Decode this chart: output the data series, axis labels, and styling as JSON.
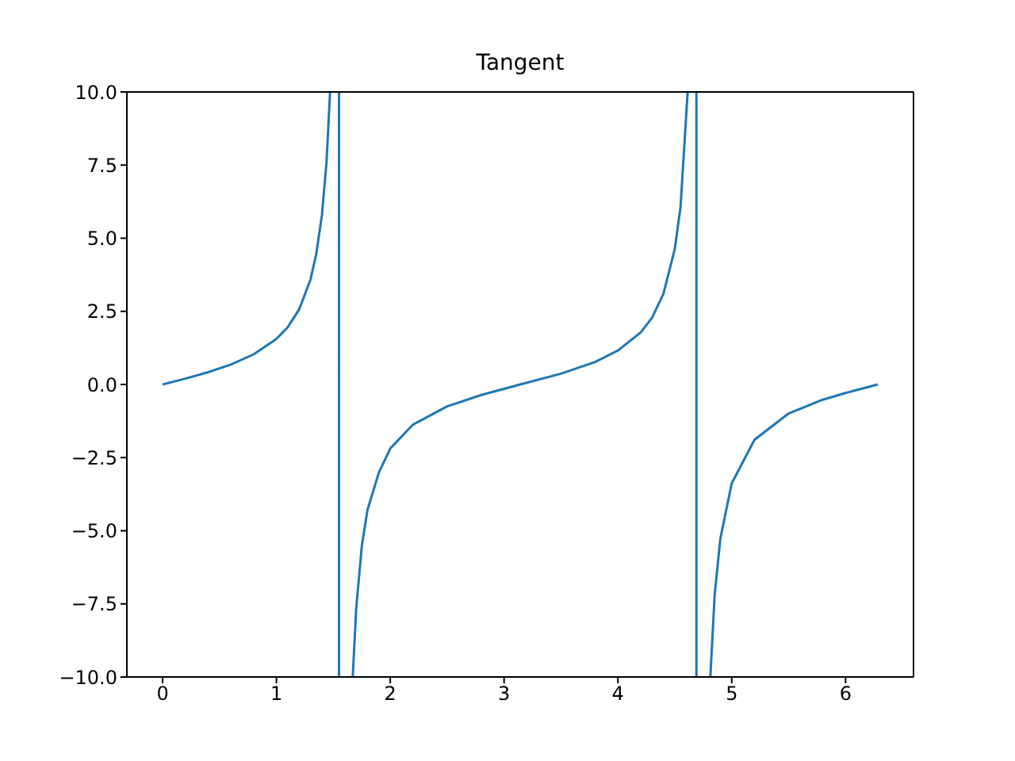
{
  "chart_data": {
    "type": "line",
    "title": "Tangent",
    "x": [
      0,
      0.2,
      0.4,
      0.6,
      0.8,
      1.0,
      1.1,
      1.2,
      1.3,
      1.35,
      1.4,
      1.44,
      1.4711,
      1.51,
      1.55,
      1.55,
      1.6,
      1.6705,
      1.7,
      1.75,
      1.8,
      1.9,
      2.0,
      2.2,
      2.5,
      2.8,
      3.1416,
      3.5,
      3.8,
      4.0,
      4.2,
      4.3,
      4.4,
      4.5,
      4.55,
      4.6127,
      4.65,
      4.69,
      4.69,
      4.75,
      4.8121,
      4.85,
      4.9,
      5.0,
      5.2,
      5.5,
      5.8,
      6.0,
      6.2832
    ],
    "series": [
      {
        "color": "#1f77b4",
        "values": [
          0,
          0.2,
          0.42,
          0.68,
          1.03,
          1.56,
          1.96,
          2.57,
          3.6,
          4.46,
          5.8,
          7.6,
          10,
          null,
          10,
          -10,
          null,
          -10,
          -7.7,
          -5.52,
          -4.29,
          -3.01,
          -2.19,
          -1.37,
          -0.75,
          -0.36,
          0,
          0.37,
          0.77,
          1.16,
          1.78,
          2.28,
          3.1,
          4.64,
          6.05,
          10,
          null,
          10,
          -10,
          null,
          -10,
          -7.2,
          -5.27,
          -3.38,
          -1.89,
          -0.99,
          -0.52,
          -0.29,
          0
        ]
      }
    ],
    "xlim": [
      -0.314,
      6.597
    ],
    "xticks": [
      0,
      1,
      2,
      3,
      4,
      5,
      6
    ],
    "ylim": [
      -10,
      10
    ],
    "yticks": [
      {
        "value": -10,
        "label": "−10.0"
      },
      {
        "value": -7.5,
        "label": "−7.5"
      },
      {
        "value": -5,
        "label": "−5.0"
      },
      {
        "value": -2.5,
        "label": "−2.5"
      },
      {
        "value": 0,
        "label": "0.0"
      },
      {
        "value": 2.5,
        "label": "2.5"
      },
      {
        "value": 5,
        "label": "5.0"
      },
      {
        "value": 7.5,
        "label": "7.5"
      },
      {
        "value": 10,
        "label": "10.0"
      }
    ],
    "marker": "none",
    "line_style": "solid"
  }
}
